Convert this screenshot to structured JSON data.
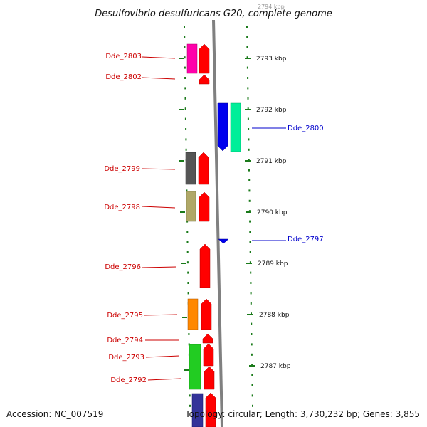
{
  "title": "Desulfovibrio desulfuricans G20, complete genome",
  "footer": {
    "accession": "Accession: NC_007519",
    "topology": "Topology: circular; Length: 3,730,232 bp; Genes: 3,855"
  },
  "colors": {
    "red_label": "#cc0000",
    "blue_label": "#0000cc",
    "tick_green": "#1a7a1a",
    "backbone": "#808080",
    "gene_red": "#ff0000"
  },
  "scale": {
    "partial_top_label": "2794 kbp",
    "labels": [
      "2793 kbp",
      "2792 kbp",
      "2791 kbp",
      "2790 kbp",
      "2789 kbp",
      "2788 kbp",
      "2787 kbp"
    ]
  },
  "genes": [
    {
      "id": "Dde_2803",
      "strand": "left",
      "color": "#ff00aa"
    },
    {
      "id": "Dde_2802",
      "strand": "left",
      "color": "#ff0000"
    },
    {
      "id": "Dde_2800",
      "strand": "right",
      "color": "#00ee99"
    },
    {
      "id": "Dde_2799",
      "strand": "left",
      "color": "#555555"
    },
    {
      "id": "Dde_2798",
      "strand": "left",
      "color": "#b0a868"
    },
    {
      "id": "Dde_2797",
      "strand": "right",
      "color": "#0000ee"
    },
    {
      "id": "Dde_2796",
      "strand": "left",
      "color": "#ff0000"
    },
    {
      "id": "Dde_2795",
      "strand": "left",
      "color": "#ff8800"
    },
    {
      "id": "Dde_2794",
      "strand": "left",
      "color": "#ff0000"
    },
    {
      "id": "Dde_2793",
      "strand": "left",
      "color": "#22cc22"
    },
    {
      "id": "Dde_2792",
      "strand": "left",
      "color": "#333399"
    }
  ]
}
